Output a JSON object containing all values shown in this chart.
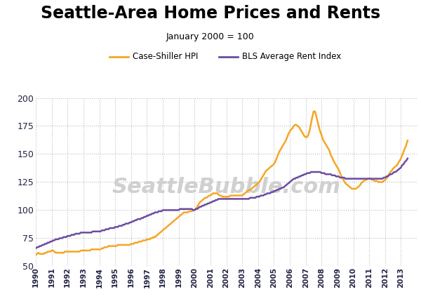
{
  "title": "Seattle-Area Home Prices and Rents",
  "subtitle": "January 2000 = 100",
  "legend": [
    "Case-Shiller HPI",
    "BLS Average Rent Index"
  ],
  "hpi_color": "#F5A623",
  "rent_color": "#6A4BA0",
  "background_color": "#ffffff",
  "grid_color": "#bbbbbb",
  "watermark": "SeattleBubble.com",
  "ylim": [
    50,
    200
  ],
  "yticks": [
    50,
    75,
    100,
    125,
    150,
    175,
    200
  ],
  "xmin": 1990,
  "xmax": 2014,
  "hpi_x": [
    1990.0,
    1990.083,
    1990.167,
    1990.25,
    1990.333,
    1990.417,
    1990.5,
    1990.583,
    1990.667,
    1990.75,
    1990.833,
    1990.917,
    1991.0,
    1991.083,
    1991.167,
    1991.25,
    1991.333,
    1991.417,
    1991.5,
    1991.583,
    1991.667,
    1991.75,
    1991.833,
    1991.917,
    1992.0,
    1992.083,
    1992.167,
    1992.25,
    1992.333,
    1992.417,
    1992.5,
    1992.583,
    1992.667,
    1992.75,
    1992.833,
    1992.917,
    1993.0,
    1993.083,
    1993.167,
    1993.25,
    1993.333,
    1993.417,
    1993.5,
    1993.583,
    1993.667,
    1993.75,
    1993.833,
    1993.917,
    1994.0,
    1994.083,
    1994.167,
    1994.25,
    1994.333,
    1994.417,
    1994.5,
    1994.583,
    1994.667,
    1994.75,
    1994.833,
    1994.917,
    1995.0,
    1995.083,
    1995.167,
    1995.25,
    1995.333,
    1995.417,
    1995.5,
    1995.583,
    1995.667,
    1995.75,
    1995.833,
    1995.917,
    1996.0,
    1996.083,
    1996.167,
    1996.25,
    1996.333,
    1996.417,
    1996.5,
    1996.583,
    1996.667,
    1996.75,
    1996.833,
    1996.917,
    1997.0,
    1997.083,
    1997.167,
    1997.25,
    1997.333,
    1997.417,
    1997.5,
    1997.583,
    1997.667,
    1997.75,
    1997.833,
    1997.917,
    1998.0,
    1998.083,
    1998.167,
    1998.25,
    1998.333,
    1998.417,
    1998.5,
    1998.583,
    1998.667,
    1998.75,
    1998.833,
    1998.917,
    1999.0,
    1999.083,
    1999.167,
    1999.25,
    1999.333,
    1999.417,
    1999.5,
    1999.583,
    1999.667,
    1999.75,
    1999.833,
    1999.917,
    2000.0,
    2000.083,
    2000.167,
    2000.25,
    2000.333,
    2000.417,
    2000.5,
    2000.583,
    2000.667,
    2000.75,
    2000.833,
    2000.917,
    2001.0,
    2001.083,
    2001.167,
    2001.25,
    2001.333,
    2001.417,
    2001.5,
    2001.583,
    2001.667,
    2001.75,
    2001.833,
    2001.917,
    2002.0,
    2002.083,
    2002.167,
    2002.25,
    2002.333,
    2002.417,
    2002.5,
    2002.583,
    2002.667,
    2002.75,
    2002.833,
    2002.917,
    2003.0,
    2003.083,
    2003.167,
    2003.25,
    2003.333,
    2003.417,
    2003.5,
    2003.583,
    2003.667,
    2003.75,
    2003.833,
    2003.917,
    2004.0,
    2004.083,
    2004.167,
    2004.25,
    2004.333,
    2004.417,
    2004.5,
    2004.583,
    2004.667,
    2004.75,
    2004.833,
    2004.917,
    2005.0,
    2005.083,
    2005.167,
    2005.25,
    2005.333,
    2005.417,
    2005.5,
    2005.583,
    2005.667,
    2005.75,
    2005.833,
    2005.917,
    2006.0,
    2006.083,
    2006.167,
    2006.25,
    2006.333,
    2006.417,
    2006.5,
    2006.583,
    2006.667,
    2006.75,
    2006.833,
    2006.917,
    2007.0,
    2007.083,
    2007.167,
    2007.25,
    2007.333,
    2007.417,
    2007.5,
    2007.583,
    2007.667,
    2007.75,
    2007.833,
    2007.917,
    2008.0,
    2008.083,
    2008.167,
    2008.25,
    2008.333,
    2008.417,
    2008.5,
    2008.583,
    2008.667,
    2008.75,
    2008.833,
    2008.917,
    2009.0,
    2009.083,
    2009.167,
    2009.25,
    2009.333,
    2009.417,
    2009.5,
    2009.583,
    2009.667,
    2009.75,
    2009.833,
    2009.917,
    2010.0,
    2010.083,
    2010.167,
    2010.25,
    2010.333,
    2010.417,
    2010.5,
    2010.583,
    2010.667,
    2010.75,
    2010.833,
    2010.917,
    2011.0,
    2011.083,
    2011.167,
    2011.25,
    2011.333,
    2011.417,
    2011.5,
    2011.583,
    2011.667,
    2011.75,
    2011.833,
    2011.917,
    2012.0,
    2012.083,
    2012.167,
    2012.25,
    2012.333,
    2012.417,
    2012.5,
    2012.583,
    2012.667,
    2012.75,
    2012.833,
    2012.917,
    2013.0,
    2013.083,
    2013.167,
    2013.25,
    2013.333,
    2013.42
  ],
  "hpi_y": [
    60,
    61,
    62,
    61,
    61,
    61,
    61,
    62,
    62,
    63,
    63,
    63,
    64,
    64,
    63,
    62,
    62,
    62,
    62,
    62,
    62,
    62,
    63,
    63,
    63,
    63,
    63,
    63,
    63,
    63,
    63,
    63,
    63,
    63,
    64,
    64,
    64,
    64,
    64,
    64,
    64,
    64,
    65,
    65,
    65,
    65,
    65,
    65,
    65,
    65,
    66,
    66,
    67,
    67,
    67,
    68,
    68,
    68,
    68,
    68,
    68,
    68,
    69,
    69,
    69,
    69,
    69,
    69,
    69,
    69,
    69,
    69,
    70,
    70,
    70,
    71,
    71,
    71,
    72,
    72,
    72,
    73,
    73,
    73,
    74,
    74,
    74,
    75,
    75,
    76,
    76,
    77,
    78,
    79,
    80,
    81,
    82,
    83,
    84,
    85,
    86,
    87,
    88,
    89,
    90,
    91,
    92,
    93,
    94,
    95,
    96,
    97,
    98,
    98,
    98,
    98,
    99,
    99,
    99,
    100,
    100,
    101,
    103,
    105,
    107,
    108,
    109,
    110,
    111,
    111,
    112,
    113,
    113,
    114,
    115,
    115,
    115,
    115,
    114,
    113,
    113,
    112,
    112,
    112,
    112,
    112,
    112,
    113,
    113,
    113,
    113,
    113,
    113,
    113,
    113,
    113,
    113,
    114,
    115,
    116,
    117,
    118,
    118,
    119,
    120,
    121,
    122,
    123,
    124,
    125,
    127,
    129,
    131,
    133,
    135,
    136,
    137,
    138,
    139,
    140,
    141,
    143,
    146,
    149,
    152,
    154,
    156,
    158,
    160,
    162,
    165,
    168,
    170,
    172,
    173,
    175,
    176,
    176,
    175,
    174,
    172,
    170,
    168,
    166,
    165,
    165,
    167,
    171,
    177,
    183,
    188,
    188,
    184,
    179,
    174,
    170,
    167,
    163,
    161,
    159,
    157,
    155,
    153,
    149,
    147,
    144,
    142,
    140,
    138,
    136,
    133,
    130,
    128,
    126,
    124,
    123,
    122,
    121,
    120,
    119,
    119,
    119,
    119,
    120,
    121,
    122,
    124,
    125,
    126,
    127,
    127,
    128,
    128,
    128,
    127,
    127,
    126,
    126,
    126,
    125,
    125,
    125,
    125,
    126,
    127,
    128,
    130,
    132,
    134,
    135,
    137,
    138,
    139,
    140,
    142,
    144,
    146,
    149,
    152,
    155,
    158,
    162
  ],
  "rent_x": [
    1990.0,
    1990.083,
    1990.167,
    1990.25,
    1990.333,
    1990.417,
    1990.5,
    1990.583,
    1990.667,
    1990.75,
    1990.833,
    1990.917,
    1991.0,
    1991.083,
    1991.167,
    1991.25,
    1991.333,
    1991.417,
    1991.5,
    1991.583,
    1991.667,
    1991.75,
    1991.833,
    1991.917,
    1992.0,
    1992.083,
    1992.167,
    1992.25,
    1992.333,
    1992.417,
    1992.5,
    1992.583,
    1992.667,
    1992.75,
    1992.833,
    1992.917,
    1993.0,
    1993.083,
    1993.167,
    1993.25,
    1993.333,
    1993.417,
    1993.5,
    1993.583,
    1993.667,
    1993.75,
    1993.833,
    1993.917,
    1994.0,
    1994.083,
    1994.167,
    1994.25,
    1994.333,
    1994.417,
    1994.5,
    1994.583,
    1994.667,
    1994.75,
    1994.833,
    1994.917,
    1995.0,
    1995.083,
    1995.167,
    1995.25,
    1995.333,
    1995.417,
    1995.5,
    1995.583,
    1995.667,
    1995.75,
    1995.833,
    1995.917,
    1996.0,
    1996.083,
    1996.167,
    1996.25,
    1996.333,
    1996.417,
    1996.5,
    1996.583,
    1996.667,
    1996.75,
    1996.833,
    1996.917,
    1997.0,
    1997.083,
    1997.167,
    1997.25,
    1997.333,
    1997.417,
    1997.5,
    1997.583,
    1997.667,
    1997.75,
    1997.833,
    1997.917,
    1998.0,
    1998.083,
    1998.167,
    1998.25,
    1998.333,
    1998.417,
    1998.5,
    1998.583,
    1998.667,
    1998.75,
    1998.833,
    1998.917,
    1999.0,
    1999.083,
    1999.167,
    1999.25,
    1999.333,
    1999.417,
    1999.5,
    1999.583,
    1999.667,
    1999.75,
    1999.833,
    1999.917,
    2000.0,
    2000.083,
    2000.167,
    2000.25,
    2000.333,
    2000.417,
    2000.5,
    2000.583,
    2000.667,
    2000.75,
    2000.833,
    2000.917,
    2001.0,
    2001.083,
    2001.167,
    2001.25,
    2001.333,
    2001.417,
    2001.5,
    2001.583,
    2001.667,
    2001.75,
    2001.833,
    2001.917,
    2002.0,
    2002.083,
    2002.167,
    2002.25,
    2002.333,
    2002.417,
    2002.5,
    2002.583,
    2002.667,
    2002.75,
    2002.833,
    2002.917,
    2003.0,
    2003.083,
    2003.167,
    2003.25,
    2003.333,
    2003.417,
    2003.5,
    2003.583,
    2003.667,
    2003.75,
    2003.833,
    2003.917,
    2004.0,
    2004.083,
    2004.167,
    2004.25,
    2004.333,
    2004.417,
    2004.5,
    2004.583,
    2004.667,
    2004.75,
    2004.833,
    2004.917,
    2005.0,
    2005.083,
    2005.167,
    2005.25,
    2005.333,
    2005.417,
    2005.5,
    2005.583,
    2005.667,
    2005.75,
    2005.833,
    2005.917,
    2006.0,
    2006.083,
    2006.167,
    2006.25,
    2006.333,
    2006.417,
    2006.5,
    2006.583,
    2006.667,
    2006.75,
    2006.833,
    2006.917,
    2007.0,
    2007.083,
    2007.167,
    2007.25,
    2007.333,
    2007.417,
    2007.5,
    2007.583,
    2007.667,
    2007.75,
    2007.833,
    2007.917,
    2008.0,
    2008.083,
    2008.167,
    2008.25,
    2008.333,
    2008.417,
    2008.5,
    2008.583,
    2008.667,
    2008.75,
    2008.833,
    2008.917,
    2009.0,
    2009.083,
    2009.167,
    2009.25,
    2009.333,
    2009.417,
    2009.5,
    2009.583,
    2009.667,
    2009.75,
    2009.833,
    2009.917,
    2010.0,
    2010.083,
    2010.167,
    2010.25,
    2010.333,
    2010.417,
    2010.5,
    2010.583,
    2010.667,
    2010.75,
    2010.833,
    2010.917,
    2011.0,
    2011.083,
    2011.167,
    2011.25,
    2011.333,
    2011.417,
    2011.5,
    2011.583,
    2011.667,
    2011.75,
    2011.833,
    2011.917,
    2012.0,
    2012.083,
    2012.167,
    2012.25,
    2012.333,
    2012.417,
    2012.5,
    2012.583,
    2012.667,
    2012.75,
    2012.833,
    2012.917,
    2013.0,
    2013.083,
    2013.167,
    2013.25,
    2013.333,
    2013.42
  ],
  "rent_y": [
    66,
    67,
    67,
    68,
    68,
    69,
    69,
    70,
    70,
    71,
    71,
    72,
    72,
    73,
    73,
    74,
    74,
    74,
    75,
    75,
    75,
    76,
    76,
    76,
    77,
    77,
    77,
    78,
    78,
    78,
    79,
    79,
    79,
    79,
    80,
    80,
    80,
    80,
    80,
    80,
    80,
    80,
    80,
    81,
    81,
    81,
    81,
    81,
    81,
    81,
    82,
    82,
    82,
    83,
    83,
    83,
    84,
    84,
    84,
    84,
    85,
    85,
    85,
    86,
    86,
    86,
    87,
    87,
    88,
    88,
    88,
    89,
    89,
    90,
    90,
    91,
    91,
    92,
    92,
    92,
    93,
    93,
    94,
    94,
    95,
    95,
    96,
    96,
    97,
    97,
    98,
    98,
    98,
    99,
    99,
    99,
    100,
    100,
    100,
    100,
    100,
    100,
    100,
    100,
    100,
    100,
    100,
    100,
    100,
    101,
    101,
    101,
    101,
    101,
    101,
    101,
    101,
    101,
    101,
    100,
    100,
    101,
    101,
    102,
    103,
    103,
    104,
    104,
    105,
    105,
    106,
    106,
    107,
    107,
    108,
    108,
    109,
    109,
    110,
    110,
    110,
    110,
    110,
    110,
    110,
    110,
    110,
    110,
    110,
    110,
    110,
    110,
    110,
    110,
    110,
    110,
    110,
    110,
    110,
    110,
    110,
    110,
    111,
    111,
    111,
    111,
    111,
    112,
    112,
    112,
    113,
    113,
    113,
    114,
    114,
    115,
    115,
    115,
    116,
    116,
    117,
    117,
    118,
    118,
    119,
    119,
    120,
    120,
    121,
    122,
    123,
    124,
    125,
    126,
    127,
    128,
    128,
    129,
    129,
    130,
    130,
    131,
    131,
    132,
    132,
    133,
    133,
    133,
    134,
    134,
    134,
    134,
    134,
    134,
    134,
    134,
    133,
    133,
    133,
    132,
    132,
    132,
    132,
    132,
    131,
    131,
    131,
    130,
    130,
    130,
    129,
    129,
    129,
    129,
    128,
    128,
    128,
    128,
    128,
    128,
    128,
    128,
    128,
    128,
    128,
    128,
    128,
    128,
    128,
    128,
    128,
    128,
    128,
    128,
    128,
    128,
    128,
    128,
    128,
    128,
    128,
    128,
    128,
    129,
    129,
    130,
    130,
    131,
    132,
    132,
    133,
    134,
    134,
    135,
    136,
    137,
    138,
    140,
    141,
    143,
    144,
    146
  ]
}
